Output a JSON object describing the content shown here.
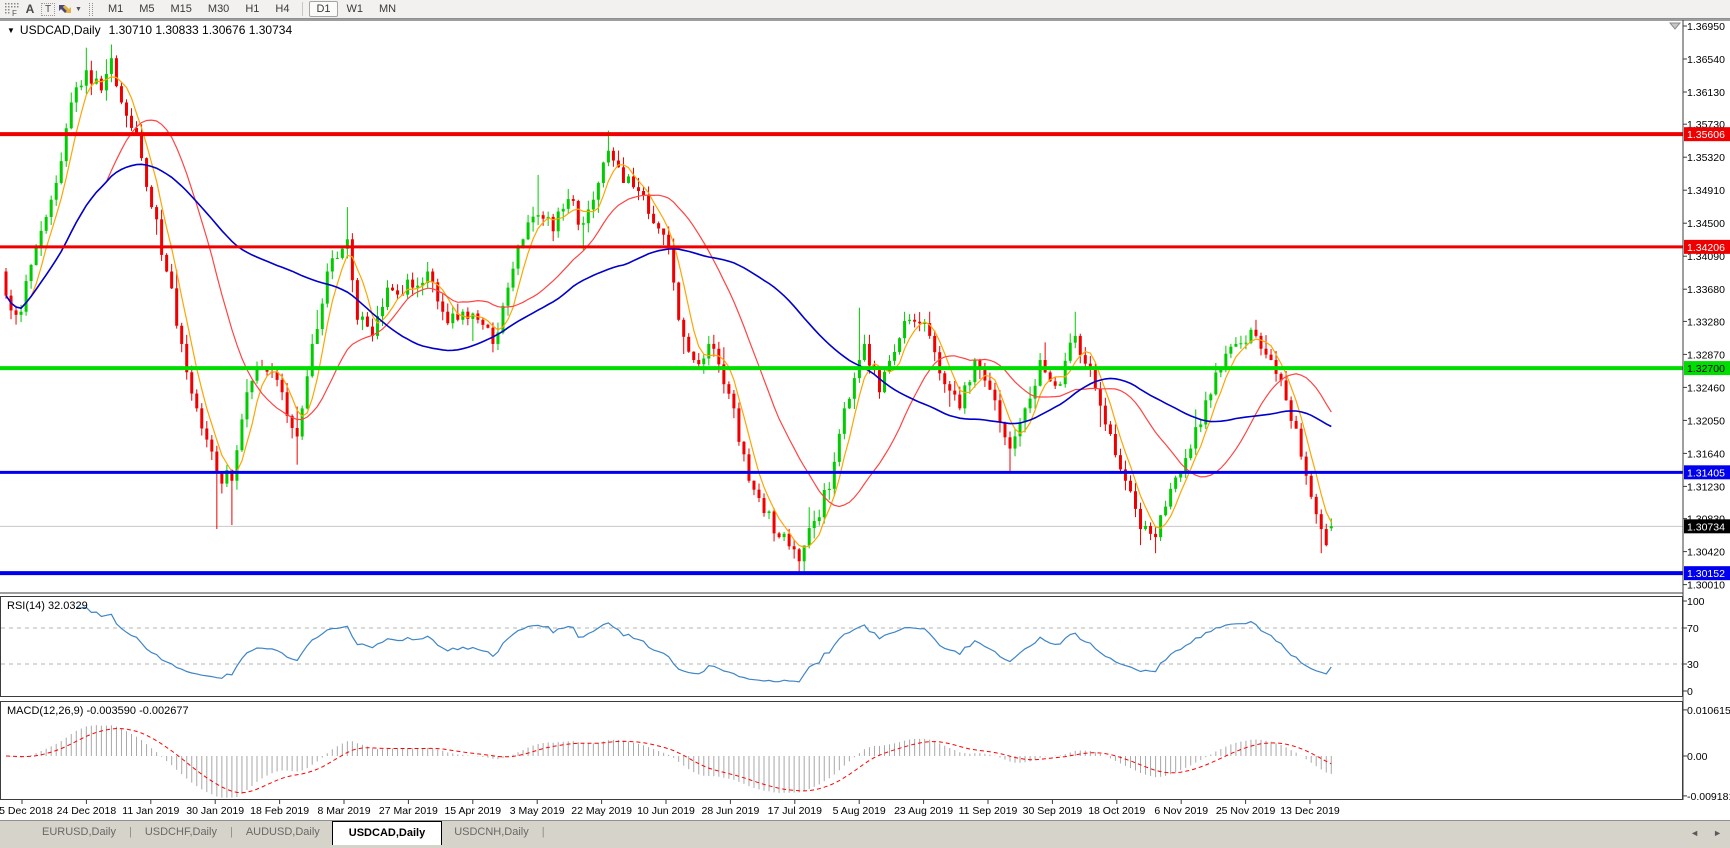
{
  "toolbar": {
    "timeframes": [
      "M1",
      "M5",
      "M15",
      "M30",
      "H1",
      "H4",
      "D1",
      "W1",
      "MN"
    ],
    "active_timeframe": "D1",
    "a_icon": "A",
    "t_icon": "T"
  },
  "chart_header": {
    "collapse_icon": "▼",
    "title": "USDCAD,Daily",
    "ohlc": "1.30710 1.30833 1.30676 1.30734"
  },
  "chart_data": {
    "type": "candlestick",
    "symbol": "USDCAD",
    "timeframe": "Daily",
    "current": {
      "open": 1.3071,
      "high": 1.30833,
      "low": 1.30676,
      "close": 1.30734
    },
    "y_ticks": [
      "1.36950",
      "1.36540",
      "1.36130",
      "1.35730",
      "1.35320",
      "1.34910",
      "1.34500",
      "1.34090",
      "1.33680",
      "1.33280",
      "1.32870",
      "1.32460",
      "1.32050",
      "1.31640",
      "1.31230",
      "1.30830",
      "1.30420",
      "1.30010"
    ],
    "x_labels": [
      "5 Dec 2018",
      "24 Dec 2018",
      "11 Jan 2019",
      "30 Jan 2019",
      "18 Feb 2019",
      "8 Mar 2019",
      "27 Mar 2019",
      "15 Apr 2019",
      "3 May 2019",
      "22 May 2019",
      "10 Jun 2019",
      "28 Jun 2019",
      "17 Jul 2019",
      "5 Aug 2019",
      "23 Aug 2019",
      "11 Sep 2019",
      "30 Sep 2019",
      "18 Oct 2019",
      "6 Nov 2019",
      "25 Nov 2019",
      "13 Dec 2019"
    ],
    "horizontal_lines": [
      {
        "price": 1.35606,
        "label": "1.35606",
        "color": "#ee0000",
        "width": 4,
        "text_color": "#ffffff"
      },
      {
        "price": 1.34206,
        "label": "1.34206",
        "color": "#ee0000",
        "width": 3,
        "text_color": "#ffffff"
      },
      {
        "price": 1.327,
        "label": "1.32700",
        "color": "#00dd00",
        "width": 4,
        "text_color": "#000000"
      },
      {
        "price": 1.31405,
        "label": "1.31405",
        "color": "#0000ee",
        "width": 3,
        "text_color": "#ffffff"
      },
      {
        "price": 1.30152,
        "label": "1.30152",
        "color": "#0000ee",
        "width": 4,
        "text_color": "#ffffff"
      }
    ],
    "current_price_label": {
      "label": "1.30734",
      "bg": "#000000",
      "text_color": "#ffffff",
      "line_color": "#c8c8c8"
    },
    "moving_averages": [
      {
        "name": "fast-ma",
        "period": 5,
        "color": "#ffa500"
      },
      {
        "name": "mid-ma",
        "period": 21,
        "color": "#ff4444"
      },
      {
        "name": "slow-ma",
        "period": 55,
        "color": "#0000cc"
      }
    ],
    "candles": {
      "count": 265,
      "up_color": "#00cc00",
      "down_color": "#f00000",
      "anchors": [
        [
          0,
          1.336
        ],
        [
          3,
          1.334
        ],
        [
          6,
          1.342
        ],
        [
          10,
          1.35
        ],
        [
          13,
          1.36
        ],
        [
          16,
          1.364,
          1.3668,
          null
        ],
        [
          19,
          1.3615
        ],
        [
          21,
          1.3655,
          1.3672,
          null
        ],
        [
          23,
          1.36
        ],
        [
          26,
          1.356
        ],
        [
          29,
          1.347
        ],
        [
          32,
          1.339
        ],
        [
          35,
          1.33
        ],
        [
          38,
          1.322
        ],
        [
          42,
          1.314,
          null,
          1.307
        ],
        [
          45,
          1.313,
          null,
          1.3075
        ],
        [
          48,
          1.324
        ],
        [
          51,
          1.327
        ],
        [
          55,
          1.324
        ],
        [
          58,
          1.3185,
          null,
          1.315
        ],
        [
          61,
          1.33
        ],
        [
          64,
          1.339
        ],
        [
          68,
          1.343,
          1.347,
          null
        ],
        [
          70,
          1.333
        ],
        [
          73,
          1.331
        ],
        [
          76,
          1.337
        ],
        [
          81,
          1.337
        ],
        [
          84,
          1.339
        ],
        [
          87,
          1.334
        ],
        [
          90,
          1.333
        ],
        [
          94,
          1.333
        ],
        [
          97,
          1.33
        ],
        [
          100,
          1.337
        ],
        [
          103,
          1.343
        ],
        [
          106,
          1.346,
          1.351,
          null
        ],
        [
          109,
          1.344
        ],
        [
          112,
          1.348
        ],
        [
          115,
          1.345
        ],
        [
          118,
          1.35
        ],
        [
          120,
          1.354,
          1.3565,
          null
        ],
        [
          123,
          1.35
        ],
        [
          126,
          1.349
        ],
        [
          129,
          1.345
        ],
        [
          132,
          1.342
        ],
        [
          134,
          1.333
        ],
        [
          137,
          1.328
        ],
        [
          140,
          1.33
        ],
        [
          143,
          1.325
        ],
        [
          145,
          1.322
        ],
        [
          148,
          1.313
        ],
        [
          151,
          1.309
        ],
        [
          154,
          1.306
        ],
        [
          158,
          1.303,
          null,
          1.3015
        ],
        [
          161,
          1.308
        ],
        [
          164,
          1.312
        ],
        [
          167,
          1.322
        ],
        [
          170,
          1.328,
          1.3345,
          null
        ],
        [
          171,
          1.33
        ],
        [
          174,
          1.324
        ],
        [
          177,
          1.329
        ],
        [
          180,
          1.333
        ],
        [
          184,
          1.331,
          1.334,
          null
        ],
        [
          187,
          1.325
        ],
        [
          190,
          1.322
        ],
        [
          193,
          1.328
        ],
        [
          197,
          1.323
        ],
        [
          200,
          1.317,
          null,
          1.314
        ],
        [
          203,
          1.322
        ],
        [
          206,
          1.328
        ],
        [
          210,
          1.325
        ],
        [
          213,
          1.331,
          1.334,
          null
        ],
        [
          216,
          1.327
        ],
        [
          219,
          1.32
        ],
        [
          223,
          1.313
        ],
        [
          226,
          1.307,
          null,
          1.305
        ],
        [
          229,
          1.306,
          null,
          1.304
        ],
        [
          232,
          1.312
        ],
        [
          236,
          1.317
        ],
        [
          239,
          1.323
        ],
        [
          242,
          1.327
        ],
        [
          245,
          1.33
        ],
        [
          249,
          1.331,
          1.333,
          null
        ],
        [
          252,
          1.328
        ],
        [
          255,
          1.323
        ],
        [
          258,
          1.316
        ],
        [
          260,
          1.311
        ],
        [
          262,
          1.307,
          null,
          1.304
        ],
        [
          263,
          1.305
        ],
        [
          264,
          1.30734,
          1.30833,
          1.30676
        ]
      ]
    },
    "rsi": {
      "label": "RSI(14) 32.0329",
      "period": 14,
      "value": 32.0329,
      "axis_ticks": [
        100,
        70,
        30,
        0
      ],
      "levels": [
        70,
        30
      ],
      "line_color": "#3d85c8"
    },
    "macd": {
      "label": "MACD(12,26,9) -0.003590 -0.002677",
      "fast": 12,
      "slow": 26,
      "signal_period": 9,
      "value": -0.00359,
      "signal_value": -0.002677,
      "axis_ticks": [
        "0.010615",
        "0.00",
        "-0.009181"
      ],
      "axis_values": [
        0.010615,
        0,
        -0.009181
      ],
      "histogram_color": "#a8a8a8",
      "signal_color": "#ff0000"
    }
  },
  "tab_bar": {
    "tabs": [
      "EURUSD,Daily",
      "USDCHF,Daily",
      "AUDUSD,Daily",
      "USDCAD,Daily",
      "USDCNH,Daily"
    ],
    "active": "USDCAD,Daily",
    "scroll_left_icon": "◄",
    "scroll_right_icon": "►"
  }
}
